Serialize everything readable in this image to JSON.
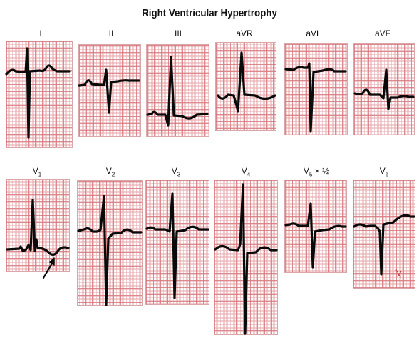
{
  "title": "Right Ventricular Hypertrophy",
  "leads_row1": [
    {
      "id": "I",
      "label": "I"
    },
    {
      "id": "II",
      "label": "II"
    },
    {
      "id": "III",
      "label": "III"
    },
    {
      "id": "aVR",
      "label": "aVR"
    },
    {
      "id": "aVL",
      "label": "aVL"
    },
    {
      "id": "aVF",
      "label": "aVF"
    }
  ],
  "leads_row2": [
    {
      "id": "V1",
      "label": "V",
      "sub": "1"
    },
    {
      "id": "V2",
      "label": "V",
      "sub": "2"
    },
    {
      "id": "V3",
      "label": "V",
      "sub": "3"
    },
    {
      "id": "V4",
      "label": "V",
      "sub": "4"
    },
    {
      "id": "V5",
      "label": "V",
      "sub": "5",
      "suffix": " × ½"
    },
    {
      "id": "V6",
      "label": "V",
      "sub": "6"
    }
  ],
  "colors": {
    "grid": "#d6747a",
    "trace": "#0a0a0a"
  }
}
